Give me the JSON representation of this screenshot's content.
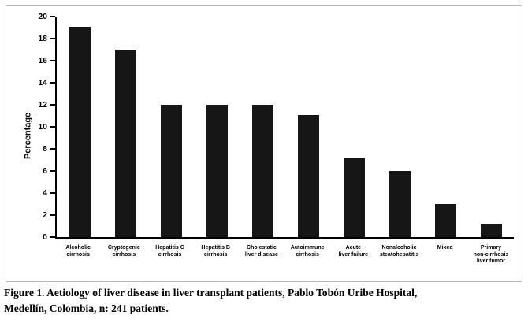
{
  "chart_data": {
    "type": "bar",
    "categories": [
      "Alcoholic\ncirrhosis",
      "Cryptogenic\ncirrhosis",
      "Hepatitis C\ncirrhosis",
      "Hepatitis B\ncirrhosis",
      "Cholestatic\nliver disease",
      "Autoimmune\ncirrhosis",
      "Acute\nliver failure",
      "Nonalcoholic\nsteatohepatitis",
      "Mixed",
      "Primary\nnon-cirrhosis\nliver tumor"
    ],
    "values": [
      19.1,
      17,
      12,
      12,
      12,
      11.1,
      7.2,
      6,
      3,
      1.2
    ],
    "title": "",
    "xlabel": "",
    "ylabel": "Percentage",
    "ylim": [
      0,
      20
    ],
    "ytick_step": 2,
    "bar_color": "#161616",
    "grid": false,
    "legend": "none"
  },
  "caption": {
    "lines": [
      "Figure 1. Aetiology of liver disease in liver transplant patients, Pablo Tobón Uribe Hospital,",
      "Medellín, Colombia, n: 241 patients."
    ]
  }
}
